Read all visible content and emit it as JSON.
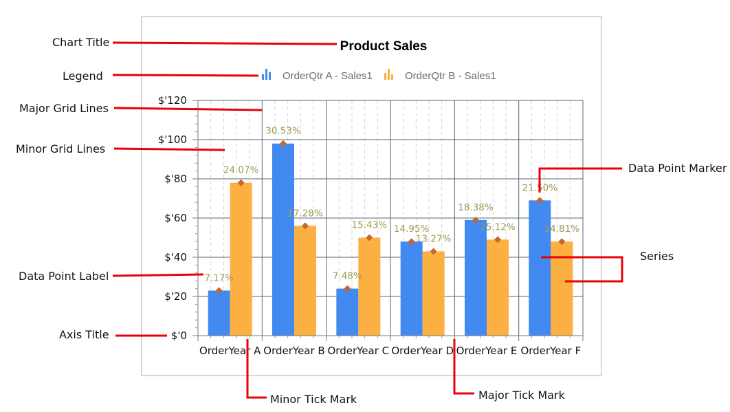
{
  "chart_data": {
    "type": "bar",
    "title": "Product Sales",
    "categories": [
      "OrderYear A",
      "OrderYear B",
      "OrderYear C",
      "OrderYear D",
      "OrderYear E",
      "OrderYear F"
    ],
    "series": [
      {
        "name": "OrderQtr A - Sales1",
        "color": "#4289f0",
        "values": [
          23,
          98,
          24,
          48,
          59,
          69
        ],
        "labels": [
          "7.17%",
          "30.53%",
          "7.48%",
          "14.95%",
          "18.38%",
          "21.50%"
        ]
      },
      {
        "name": "OrderQtr B - Sales1",
        "color": "#fbb041",
        "values": [
          78,
          56,
          50,
          43,
          49,
          48
        ],
        "labels": [
          "24.07%",
          "17.28%",
          "15.43%",
          "13.27%",
          "15.12%",
          "14.81%"
        ]
      }
    ],
    "y_ticks": [
      "$'0",
      "$'20",
      "$'40",
      "$'60",
      "$'80",
      "$'100",
      "$'120"
    ],
    "ylim": [
      0,
      120
    ],
    "major_step": 20,
    "minor_per_major": 4,
    "marker_color": "#c8662c",
    "grid": true,
    "legend_position": "top"
  },
  "annotations": {
    "chart_title": "Chart Title",
    "legend": "Legend",
    "major_grid_lines": "Major Grid Lines",
    "minor_grid_lines": "Minor Grid Lines",
    "data_point_label": "Data Point Label",
    "axis_title": "Axis Title",
    "data_point_marker": "Data Point Marker",
    "series": "Series",
    "minor_tick_mark": "Minor Tick Mark",
    "major_tick_mark": "Major Tick Mark"
  },
  "colors": {
    "annotation_line": "#e8000b",
    "frame": "#c8c8c8",
    "major_grid": "#536a73",
    "minor_grid": "#d4d4d4"
  }
}
